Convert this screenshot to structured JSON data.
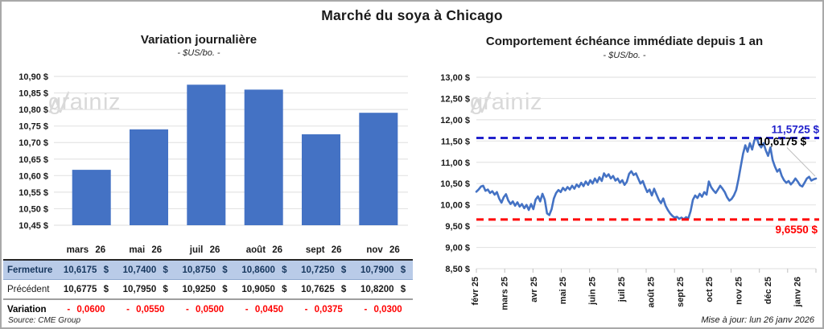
{
  "page": {
    "title": "Marché du soya à Chicago",
    "source": "Source: CME Group",
    "updated": "Mise à jour: lun 26 janv 2026",
    "watermark": {
      "part1": "grain",
      "part2": "iz"
    }
  },
  "colors": {
    "series_blue": "#4472C4",
    "max_line_blue": "#2222CC",
    "min_line_red": "#FF0000",
    "last_label_black": "#000000",
    "grid_gray": "#E4E4E4",
    "tick_gray": "#BFBFBF",
    "leader_gray": "#BFBFBF",
    "fermeture_bg": "#B9CBE8",
    "fermeture_text": "#17375E",
    "variation_text": "#FF0000",
    "watermark_gray": "#D9D9D9"
  },
  "table": {
    "columns": [
      "mars 26",
      "mai 26",
      "juil 26",
      "août 26",
      "sept 26",
      "nov 26"
    ],
    "rows": [
      {
        "style": "fermeture",
        "label": "Fermeture",
        "values": [
          "10,6175 $",
          "10,7400 $",
          "10,8750 $",
          "10,8600 $",
          "10,7250 $",
          "10,7900 $"
        ]
      },
      {
        "style": "precedent",
        "label": "Précédent",
        "values": [
          "10,6775 $",
          "10,7950 $",
          "10,9250 $",
          "10,9050 $",
          "10,7625 $",
          "10,8200 $"
        ]
      },
      {
        "style": "variation",
        "label": "Variation",
        "values": [
          "- 0,0600",
          "- 0,0550",
          "- 0,0500",
          "- 0,0450",
          "- 0,0375",
          "- 0,0300"
        ]
      }
    ]
  },
  "chart_data": [
    {
      "type": "bar",
      "title": "Variation journalière",
      "subtitle": "- $US/bo. -",
      "categories": [
        "mars 26",
        "mai 26",
        "juil 26",
        "août 26",
        "sept 26",
        "nov 26"
      ],
      "values": [
        10.6175,
        10.74,
        10.875,
        10.86,
        10.725,
        10.79
      ],
      "ylim": [
        10.45,
        10.9
      ],
      "ytick_step": 0.05,
      "ytick_format": "fr-currency",
      "grid": true,
      "legend": "none",
      "bar_color": "#4472C4"
    },
    {
      "type": "line",
      "title": "Comportement échéance immédiate depuis 1 an",
      "subtitle": "- $US/bo. -",
      "x_labels": [
        "févr 25",
        "mars 25",
        "avr 25",
        "mai 25",
        "juin 25",
        "juil 25",
        "août 25",
        "sept 25",
        "oct 25",
        "nov 25",
        "déc 25",
        "janv 26"
      ],
      "ylim": [
        8.5,
        13.0
      ],
      "ytick_step": 0.5,
      "ytick_format": "fr-currency",
      "grid": true,
      "legend": "none",
      "line_color": "#4472C4",
      "max_marker": {
        "value": 11.5725,
        "label": "11,5725 $",
        "color": "#2222CC",
        "style": "dashed"
      },
      "min_marker": {
        "value": 9.655,
        "label": "9,6550 $",
        "color": "#FF0000",
        "style": "dashed"
      },
      "last_marker": {
        "value": 10.6175,
        "label": "10,6175 $",
        "color": "#000000"
      },
      "values": [
        10.31,
        10.36,
        10.43,
        10.45,
        10.33,
        10.36,
        10.28,
        10.32,
        10.24,
        10.3,
        10.15,
        10.05,
        10.18,
        10.25,
        10.1,
        10.02,
        10.08,
        9.98,
        10.06,
        9.96,
        10.02,
        9.92,
        10.0,
        9.88,
        10.02,
        9.9,
        10.12,
        10.2,
        10.08,
        10.26,
        10.12,
        9.8,
        9.76,
        9.9,
        10.15,
        10.28,
        10.35,
        10.3,
        10.4,
        10.34,
        10.42,
        10.36,
        10.45,
        10.38,
        10.48,
        10.42,
        10.52,
        10.44,
        10.55,
        10.47,
        10.58,
        10.5,
        10.62,
        10.53,
        10.65,
        10.56,
        10.74,
        10.66,
        10.72,
        10.62,
        10.68,
        10.57,
        10.62,
        10.52,
        10.58,
        10.47,
        10.54,
        10.73,
        10.79,
        10.7,
        10.74,
        10.62,
        10.5,
        10.56,
        10.42,
        10.3,
        10.36,
        10.22,
        10.38,
        10.25,
        10.12,
        10.04,
        10.15,
        9.98,
        9.88,
        9.8,
        9.74,
        9.7,
        9.72,
        9.67,
        9.7,
        9.66,
        9.71,
        9.68,
        9.85,
        10.12,
        10.22,
        10.16,
        10.26,
        10.19,
        10.3,
        10.24,
        10.55,
        10.42,
        10.34,
        10.28,
        10.36,
        10.45,
        10.38,
        10.3,
        10.18,
        10.1,
        10.14,
        10.22,
        10.35,
        10.6,
        10.9,
        11.2,
        11.4,
        11.25,
        11.45,
        11.3,
        11.52,
        11.5725,
        11.42,
        11.35,
        11.45,
        11.28,
        11.15,
        11.35,
        11.05,
        10.9,
        10.78,
        10.84,
        10.68,
        10.58,
        10.52,
        10.56,
        10.48,
        10.54,
        10.62,
        10.55,
        10.46,
        10.43,
        10.52,
        10.62,
        10.66,
        10.57,
        10.6,
        10.6175
      ]
    }
  ]
}
